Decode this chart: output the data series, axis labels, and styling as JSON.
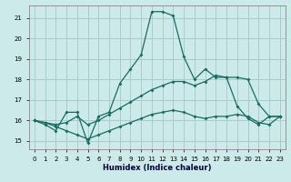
{
  "xlabel": "Humidex (Indice chaleur)",
  "background_color": "#cceaea",
  "grid_color": "#aacccc",
  "line_color": "#1a6b60",
  "xlim": [
    -0.5,
    23.5
  ],
  "ylim": [
    14.6,
    21.6
  ],
  "yticks": [
    15,
    16,
    17,
    18,
    19,
    20,
    21
  ],
  "xticks": [
    0,
    1,
    2,
    3,
    4,
    5,
    6,
    7,
    8,
    9,
    10,
    11,
    12,
    13,
    14,
    15,
    16,
    17,
    18,
    19,
    20,
    21,
    22,
    23
  ],
  "line1_x": [
    0,
    1,
    2,
    3,
    4,
    5,
    6,
    7,
    8,
    9,
    10,
    11,
    12,
    13,
    14,
    15,
    16,
    17,
    18,
    19,
    20,
    21,
    22,
    23
  ],
  "line1_y": [
    16.0,
    15.8,
    15.5,
    16.4,
    16.4,
    14.9,
    16.2,
    16.4,
    17.8,
    18.5,
    19.2,
    21.3,
    21.3,
    21.1,
    19.1,
    18.0,
    18.5,
    18.1,
    18.1,
    16.7,
    16.1,
    15.8,
    16.2,
    16.2
  ],
  "line2_x": [
    0,
    1,
    2,
    3,
    4,
    5,
    6,
    7,
    8,
    9,
    10,
    11,
    12,
    13,
    14,
    15,
    16,
    17,
    18,
    19,
    20,
    21,
    22,
    23
  ],
  "line2_y": [
    16.0,
    15.9,
    15.8,
    15.9,
    16.2,
    15.8,
    16.0,
    16.3,
    16.6,
    16.9,
    17.2,
    17.5,
    17.7,
    17.9,
    17.9,
    17.7,
    17.9,
    18.2,
    18.1,
    18.1,
    18.0,
    16.8,
    16.2,
    16.2
  ],
  "line3_x": [
    0,
    1,
    2,
    3,
    4,
    5,
    6,
    7,
    8,
    9,
    10,
    11,
    12,
    13,
    14,
    15,
    16,
    17,
    18,
    19,
    20,
    21,
    22,
    23
  ],
  "line3_y": [
    16.0,
    15.9,
    15.7,
    15.5,
    15.3,
    15.1,
    15.3,
    15.5,
    15.7,
    15.9,
    16.1,
    16.3,
    16.4,
    16.5,
    16.4,
    16.2,
    16.1,
    16.2,
    16.2,
    16.3,
    16.2,
    15.9,
    15.8,
    16.2
  ]
}
